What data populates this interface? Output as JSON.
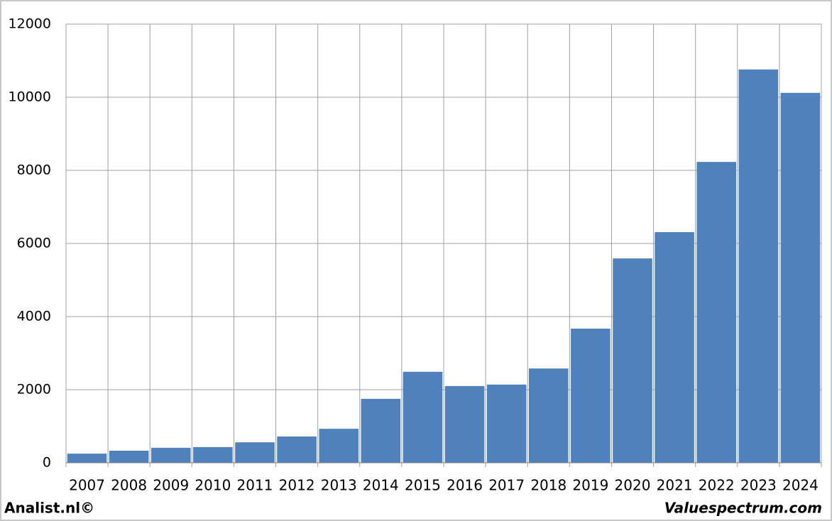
{
  "chart_data": {
    "type": "bar",
    "categories": [
      "2007",
      "2008",
      "2009",
      "2010",
      "2011",
      "2012",
      "2013",
      "2014",
      "2015",
      "2016",
      "2017",
      "2018",
      "2019",
      "2020",
      "2021",
      "2022",
      "2023",
      "2024"
    ],
    "values": [
      250,
      330,
      410,
      430,
      560,
      720,
      930,
      1750,
      2490,
      2100,
      2140,
      2580,
      3670,
      5590,
      6310,
      8230,
      10760,
      10120
    ],
    "color": "#4f81bd",
    "ylim": [
      0,
      12000
    ],
    "yticks": [
      0,
      2000,
      4000,
      6000,
      8000,
      10000,
      12000
    ],
    "grid": true,
    "credits": [
      "Analist.nl©",
      "Valuespectrum.com"
    ]
  }
}
